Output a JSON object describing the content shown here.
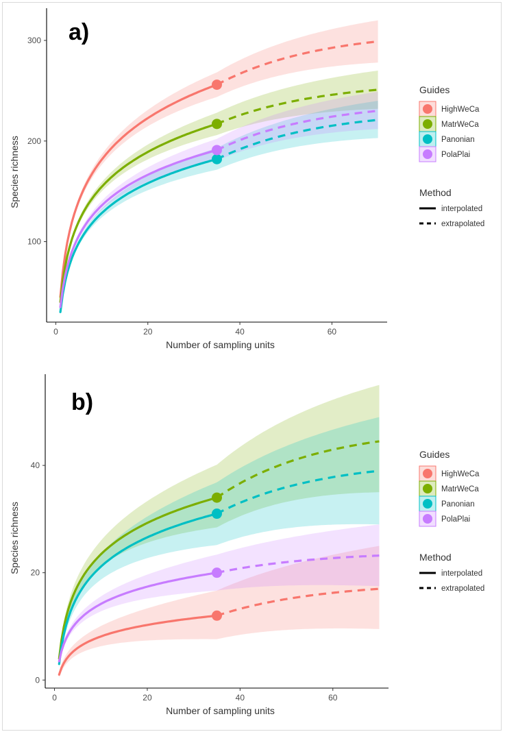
{
  "legend": {
    "guides_title": "Guides",
    "method_title": "Method",
    "methods": [
      "interpolated",
      "extrapolated"
    ]
  },
  "colors": {
    "HighWeCa": "#F8766D",
    "MatrWeCa": "#7CAE00",
    "Panonian": "#00BFC4",
    "PolaPlai": "#C77CFF"
  },
  "chart_data": [
    {
      "panel_label": "a)",
      "type": "line",
      "xlabel": "Number of sampling units",
      "ylabel": "Species richness",
      "xlim": [
        -2,
        72
      ],
      "ylim": [
        20,
        332
      ],
      "xticks": [
        0,
        20,
        40,
        60
      ],
      "yticks": [
        100,
        200,
        300
      ],
      "observed_x": 35,
      "x_max": 70,
      "legend_position": "right",
      "grid": false,
      "series": [
        {
          "name": "HighWeCa",
          "observed": 256,
          "final": 299,
          "start": 45,
          "ci_low_end": 278,
          "ci_high_end": 320
        },
        {
          "name": "MatrWeCa",
          "observed": 217,
          "final": 251,
          "start": 40,
          "ci_low_end": 232,
          "ci_high_end": 270
        },
        {
          "name": "Panonian",
          "observed": 182,
          "final": 221,
          "start": 30,
          "ci_low_end": 203,
          "ci_high_end": 240
        },
        {
          "name": "PolaPlai",
          "observed": 191,
          "final": 230,
          "start": 35,
          "ci_low_end": 212,
          "ci_high_end": 249
        }
      ]
    },
    {
      "panel_label": "b)",
      "type": "line",
      "xlabel": "Number of sampling units",
      "ylabel": "Species richness",
      "xlim": [
        -2,
        72
      ],
      "ylim": [
        -1.5,
        57
      ],
      "xticks": [
        0,
        20,
        40,
        60
      ],
      "yticks": [
        0,
        20,
        40
      ],
      "observed_x": 35,
      "x_max": 70,
      "legend_position": "right",
      "grid": false,
      "series": [
        {
          "name": "HighWeCa",
          "observed": 12,
          "final": 17,
          "start": 1,
          "ci_low_end": 9.5,
          "ci_high_end": 25
        },
        {
          "name": "MatrWeCa",
          "observed": 34,
          "final": 44.5,
          "start": 4,
          "ci_low_end": 35,
          "ci_high_end": 55
        },
        {
          "name": "Panonian",
          "observed": 31,
          "final": 39,
          "start": 3,
          "ci_low_end": 29,
          "ci_high_end": 49
        },
        {
          "name": "PolaPlai",
          "observed": 20,
          "final": 23.2,
          "start": 3.5,
          "ci_low_end": 17.5,
          "ci_high_end": 29
        }
      ]
    }
  ]
}
